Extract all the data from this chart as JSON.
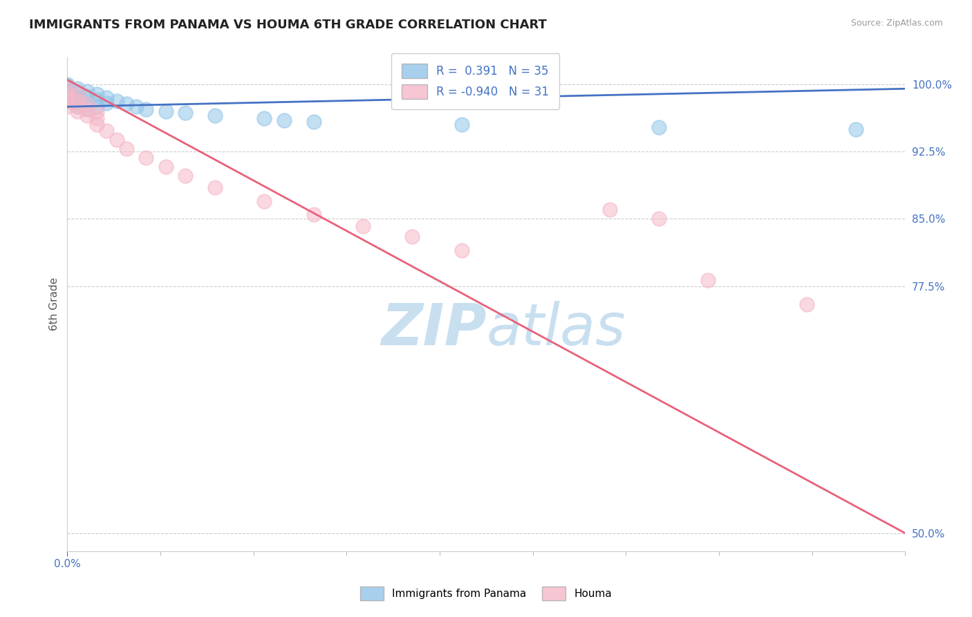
{
  "title": "IMMIGRANTS FROM PANAMA VS HOUMA 6TH GRADE CORRELATION CHART",
  "source_text": "Source: ZipAtlas.com",
  "ylabel": "6th Grade",
  "legend1_label": "Immigrants from Panama",
  "legend2_label": "Houma",
  "R1": 0.391,
  "N1": 35,
  "R2": -0.94,
  "N2": 31,
  "blue_color": "#93c5e8",
  "pink_color": "#f5b8c8",
  "blue_line_color": "#4472c4",
  "pink_line_color": "#e8607a",
  "title_color": "#222222",
  "axis_label_color": "#555555",
  "tick_color": "#4472c4",
  "grid_color": "#cccccc",
  "background_color": "#ffffff",
  "watermark_color": "#c8dff0",
  "blue_scatter_x": [
    0.0,
    0.0,
    0.0,
    0.0,
    0.0,
    0.0,
    0.0,
    0.0,
    0.001,
    0.001,
    0.001,
    0.001,
    0.001,
    0.002,
    0.002,
    0.002,
    0.002,
    0.003,
    0.003,
    0.003,
    0.004,
    0.004,
    0.005,
    0.006,
    0.007,
    0.008,
    0.01,
    0.012,
    0.015,
    0.02,
    0.022,
    0.025,
    0.04,
    0.06,
    0.08
  ],
  "blue_scatter_y": [
    100.0,
    99.8,
    99.6,
    99.3,
    99.0,
    98.8,
    98.5,
    98.2,
    99.5,
    99.0,
    98.5,
    98.0,
    97.5,
    99.2,
    98.7,
    97.8,
    97.2,
    98.9,
    98.3,
    97.5,
    98.5,
    97.9,
    98.1,
    97.8,
    97.5,
    97.2,
    97.0,
    96.8,
    96.5,
    96.2,
    96.0,
    95.8,
    95.5,
    95.2,
    95.0
  ],
  "pink_scatter_x": [
    0.0,
    0.0,
    0.0,
    0.0,
    0.0,
    0.001,
    0.001,
    0.001,
    0.001,
    0.002,
    0.002,
    0.002,
    0.003,
    0.003,
    0.003,
    0.004,
    0.005,
    0.006,
    0.008,
    0.01,
    0.012,
    0.015,
    0.02,
    0.025,
    0.03,
    0.035,
    0.04,
    0.055,
    0.06,
    0.065,
    0.075
  ],
  "pink_scatter_y": [
    99.5,
    99.0,
    98.5,
    98.0,
    97.5,
    98.8,
    98.2,
    97.6,
    97.0,
    97.8,
    97.2,
    96.5,
    97.0,
    96.2,
    95.5,
    94.8,
    93.8,
    92.8,
    91.8,
    90.8,
    89.8,
    88.5,
    87.0,
    85.5,
    84.2,
    83.0,
    81.5,
    86.0,
    85.0,
    78.2,
    75.5
  ],
  "xlim": [
    0.0,
    0.085
  ],
  "ylim": [
    48.0,
    103.0
  ],
  "blue_trendline_x": [
    0.0,
    0.085
  ],
  "blue_trendline_y": [
    97.5,
    99.5
  ],
  "pink_trendline_x": [
    0.0,
    0.085
  ],
  "pink_trendline_y": [
    100.5,
    50.0
  ],
  "xtick_vals": [
    0.0
  ],
  "xtick_labels": [
    "0.0%"
  ],
  "ytick_vals": [
    50.0,
    77.5,
    85.0,
    92.5,
    100.0
  ],
  "ytick_labels": [
    "50.0%",
    "77.5%",
    "85.0%",
    "92.5%",
    "100.0%"
  ]
}
